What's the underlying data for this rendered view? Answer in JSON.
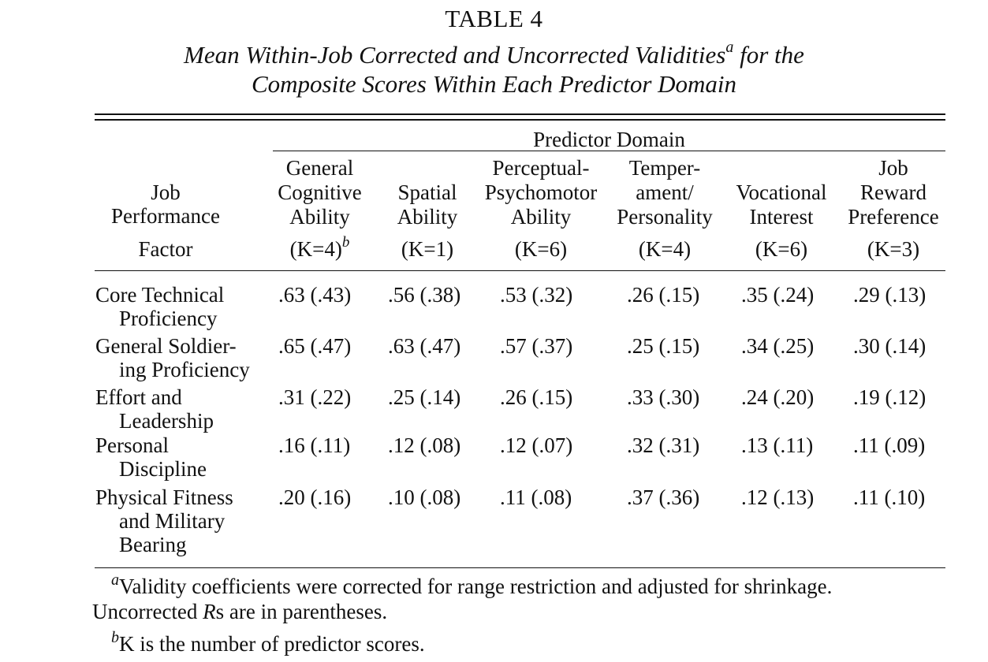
{
  "table": {
    "number": "TABLE 4",
    "caption_line1": "Mean Within-Job Corrected and Uncorrected Validities",
    "caption_line1_mark": "a",
    "caption_line1_end": " for the",
    "caption_line2": "Composite Scores Within Each Predictor Domain",
    "spanner": "Predictor Domain",
    "stub_header": [
      "Job",
      "Performance",
      "Factor"
    ],
    "columns": [
      {
        "lines": [
          "General",
          "Cognitive",
          "Ability"
        ],
        "k": "(K=4)",
        "k_mark": "b"
      },
      {
        "lines": [
          "Spatial",
          "Ability"
        ],
        "k": "(K=1)",
        "k_mark": ""
      },
      {
        "lines": [
          "Perceptual-",
          "Psychomotor",
          "Ability"
        ],
        "k": "(K=6)",
        "k_mark": ""
      },
      {
        "lines": [
          "Temper-",
          "ament/",
          "Personality"
        ],
        "k": "(K=4)",
        "k_mark": ""
      },
      {
        "lines": [
          "Vocational",
          "Interest"
        ],
        "k": "(K=6)",
        "k_mark": ""
      },
      {
        "lines": [
          "Job",
          "Reward",
          "Preference"
        ],
        "k": "(K=3)",
        "k_mark": ""
      }
    ],
    "rows": [
      {
        "label": [
          "Core Technical",
          "Proficiency"
        ],
        "values": [
          ".63 (.43)",
          ".56 (.38)",
          ".53 (.32)",
          ".26 (.15)",
          ".35 (.24)",
          ".29 (.13)"
        ]
      },
      {
        "label": [
          "General Soldier-",
          "ing Proficiency"
        ],
        "values": [
          ".65 (.47)",
          ".63 (.47)",
          ".57 (.37)",
          ".25 (.15)",
          ".34 (.25)",
          ".30 (.14)"
        ]
      },
      {
        "label": [
          "Effort and",
          "Leadership"
        ],
        "values": [
          ".31 (.22)",
          ".25 (.14)",
          ".26 (.15)",
          ".33 (.30)",
          ".24 (.20)",
          ".19 (.12)"
        ]
      },
      {
        "label": [
          "Personal",
          "Discipline"
        ],
        "values": [
          ".16 (.11)",
          ".12 (.08)",
          ".12 (.07)",
          ".32 (.31)",
          ".13 (.11)",
          ".11 (.09)"
        ]
      },
      {
        "label": [
          "Physical Fitness",
          "and Military",
          "Bearing"
        ],
        "values": [
          ".20 (.16)",
          ".10 (.08)",
          ".11 (.08)",
          ".37 (.36)",
          ".12 (.13)",
          ".11 (.10)"
        ]
      }
    ],
    "footnotes": [
      {
        "mark": "a",
        "text": "Validity coefficients were corrected for range restriction and adjusted for shrinkage.",
        "line2_prefix": "Uncorrected ",
        "line2_italic": "R",
        "line2_suffix": "s are in parentheses."
      },
      {
        "mark": "b",
        "text": "K is the number of predictor scores."
      }
    ]
  }
}
